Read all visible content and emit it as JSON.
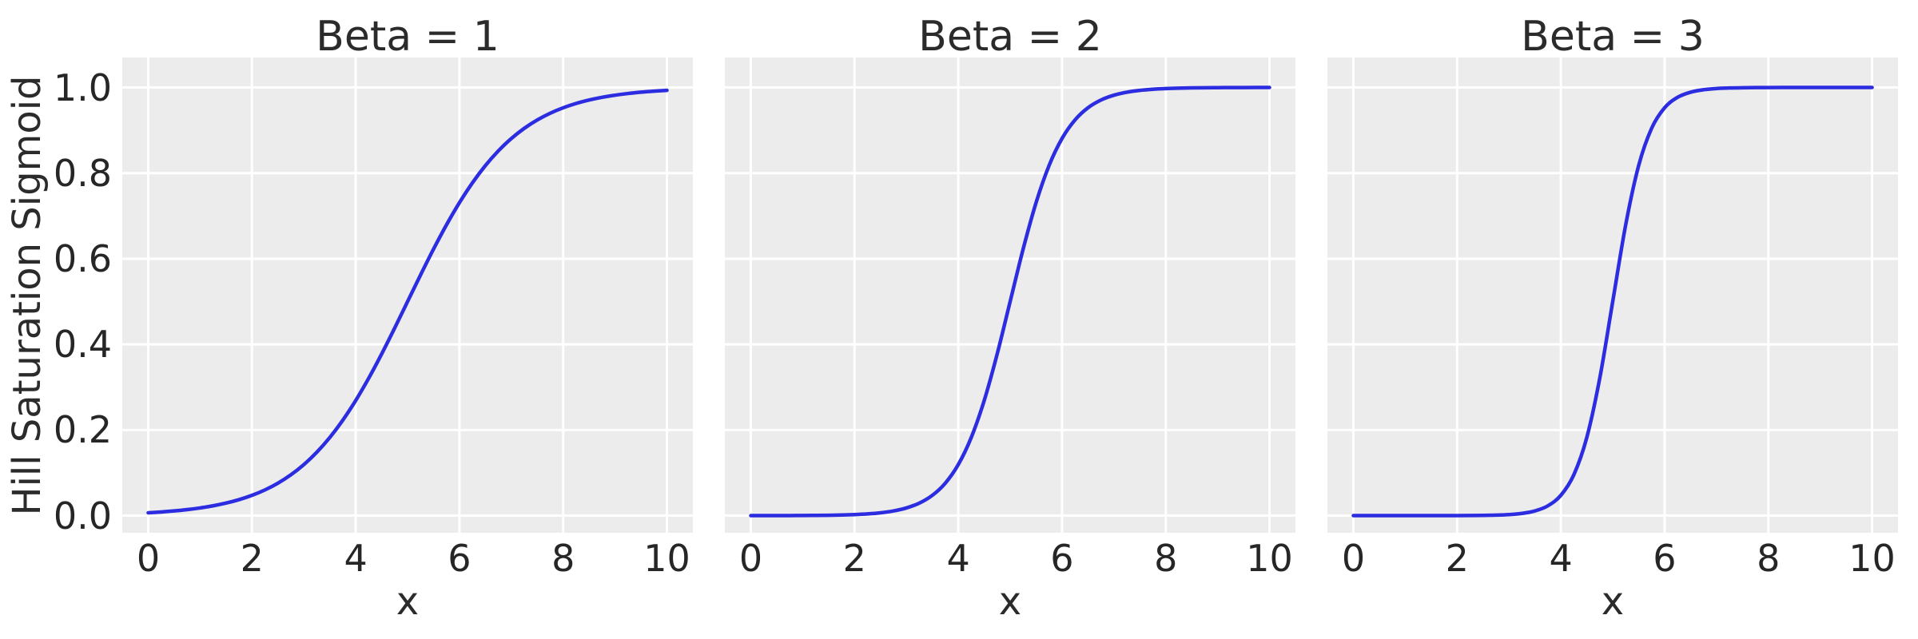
{
  "figure": {
    "background": "#ffffff",
    "panel_background": "#ececec",
    "grid_color": "#ffffff",
    "text_color": "#262626",
    "line_color": "#2c2ce0"
  },
  "chart_data": {
    "type": "line",
    "layout": "three side-by-side subplots sharing the y axis, grid on",
    "xlabel": "x",
    "ylabel": "Hill Saturation Sigmoid",
    "xlim": [
      -0.5,
      10.5
    ],
    "ylim": [
      -0.04,
      1.07
    ],
    "x_ticks": [
      0,
      2,
      4,
      6,
      8,
      10
    ],
    "x_tick_labels": [
      "0",
      "2",
      "4",
      "6",
      "8",
      "10"
    ],
    "y_ticks": [
      0.0,
      0.2,
      0.4,
      0.6,
      0.8,
      1.0
    ],
    "y_tick_labels": [
      "0.0",
      "0.2",
      "0.4",
      "0.6",
      "0.8",
      "1.0"
    ],
    "grid": true,
    "line_color": "#2c2ce0",
    "line_width": 4.5,
    "x": [
      0,
      0.25,
      0.5,
      0.75,
      1,
      1.25,
      1.5,
      1.75,
      2,
      2.25,
      2.5,
      2.75,
      3,
      3.25,
      3.5,
      3.75,
      4,
      4.25,
      4.5,
      4.75,
      5,
      5.25,
      5.5,
      5.75,
      6,
      6.25,
      6.5,
      6.75,
      7,
      7.25,
      7.5,
      7.75,
      8,
      8.25,
      8.5,
      8.75,
      9,
      9.25,
      9.5,
      9.75,
      10
    ],
    "subplots": [
      {
        "title": "Beta = 1",
        "beta": 1,
        "values": [
          0.00669,
          0.00858,
          0.01099,
          0.01406,
          0.01799,
          0.02298,
          0.02931,
          0.03733,
          0.04743,
          0.06009,
          0.07586,
          0.09535,
          0.1192,
          0.14805,
          0.18243,
          0.2227,
          0.26894,
          0.32082,
          0.37754,
          0.43782,
          0.5,
          0.56218,
          0.62246,
          0.67918,
          0.73106,
          0.7773,
          0.81757,
          0.85195,
          0.8808,
          0.90465,
          0.92414,
          0.93991,
          0.95257,
          0.96267,
          0.97069,
          0.97702,
          0.98201,
          0.98594,
          0.98901,
          0.99142,
          0.99331
        ]
      },
      {
        "title": "Beta = 2",
        "beta": 2,
        "values": [
          5e-05,
          7e-05,
          0.00012,
          0.0002,
          0.00034,
          0.00055,
          0.00091,
          0.0015,
          0.00247,
          0.00407,
          0.00669,
          0.01099,
          0.01799,
          0.02931,
          0.04743,
          0.07586,
          0.1192,
          0.18243,
          0.26894,
          0.37754,
          0.5,
          0.62246,
          0.73106,
          0.81757,
          0.8808,
          0.92414,
          0.95257,
          0.97069,
          0.98201,
          0.98901,
          0.99331,
          0.99593,
          0.99753,
          0.9985,
          0.99909,
          0.99945,
          0.99966,
          0.9998,
          0.99988,
          0.99993,
          0.99995
        ]
      },
      {
        "title": "Beta = 3",
        "beta": 3,
        "values": [
          0.0,
          0.0,
          0.0,
          0.0,
          1e-05,
          1e-05,
          3e-05,
          6e-05,
          0.00012,
          0.00026,
          0.00055,
          0.00117,
          0.00247,
          0.00522,
          0.01099,
          0.02298,
          0.04743,
          0.09535,
          0.18243,
          0.32082,
          0.5,
          0.67918,
          0.81757,
          0.90465,
          0.95257,
          0.97702,
          0.98901,
          0.99478,
          0.99753,
          0.99883,
          0.99945,
          0.99974,
          0.99988,
          0.99994,
          0.99997,
          0.99999,
          0.99999,
          1.0,
          1.0,
          1.0,
          1.0
        ]
      }
    ]
  }
}
